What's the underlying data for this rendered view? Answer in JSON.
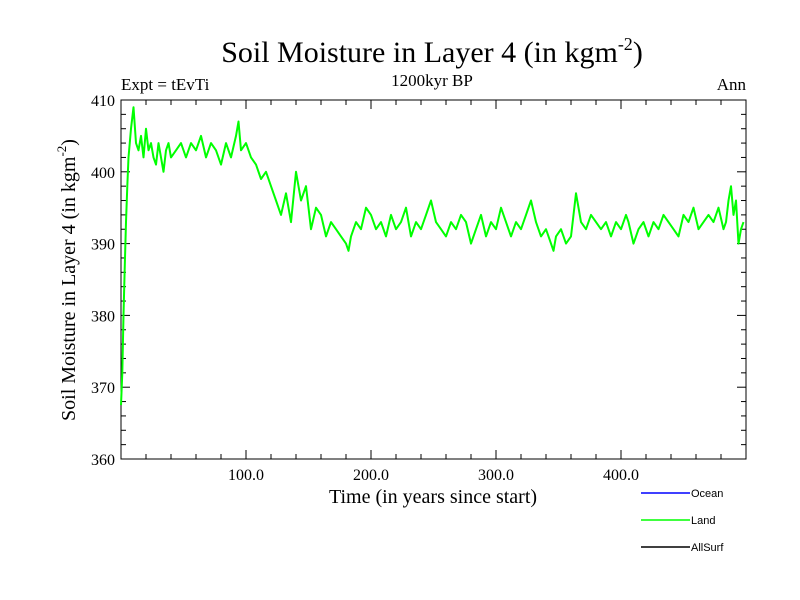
{
  "chart_data": {
    "type": "line",
    "title": "Soil Moisture in Layer 4 (in kgm",
    "title_superscript": "-2",
    "title_close": ")",
    "subtitle_left": "Expt = tEvTi",
    "subtitle_center": "1200kyr BP",
    "subtitle_right": "Ann",
    "xlabel": "Time (in years since start)",
    "ylabel": "Soil Moisture in Layer 4 (in kgm",
    "ylabel_superscript": "-2",
    "ylabel_close": ")",
    "xlim": [
      0,
      500
    ],
    "ylim": [
      360,
      410
    ],
    "x_major_ticks": [
      100,
      200,
      300,
      400
    ],
    "x_tick_labels": [
      "100.0",
      "200.0",
      "300.0",
      "400.0"
    ],
    "y_major_ticks": [
      360,
      370,
      380,
      390,
      400,
      410
    ],
    "y_tick_labels": [
      "360",
      "370",
      "380",
      "390",
      "400",
      "410"
    ],
    "legend": [
      {
        "name": "Ocean",
        "color": "#0000ff"
      },
      {
        "name": "Land",
        "color": "#00ff00"
      },
      {
        "name": "AllSurf",
        "color": "#000000"
      }
    ],
    "series": [
      {
        "name": "Land",
        "color": "#00ff00",
        "x": [
          0,
          1,
          2,
          3,
          4,
          5,
          6,
          8,
          10,
          12,
          14,
          16,
          18,
          20,
          22,
          24,
          26,
          28,
          30,
          32,
          34,
          36,
          38,
          40,
          44,
          48,
          52,
          56,
          60,
          64,
          68,
          72,
          76,
          80,
          84,
          88,
          92,
          94,
          96,
          100,
          104,
          108,
          112,
          116,
          120,
          124,
          128,
          132,
          136,
          140,
          144,
          148,
          152,
          156,
          160,
          164,
          168,
          172,
          176,
          180,
          182,
          184,
          188,
          192,
          196,
          200,
          204,
          208,
          212,
          216,
          220,
          224,
          228,
          232,
          236,
          240,
          244,
          248,
          252,
          256,
          260,
          264,
          268,
          272,
          276,
          280,
          284,
          288,
          292,
          296,
          300,
          304,
          308,
          312,
          316,
          320,
          324,
          328,
          332,
          336,
          340,
          344,
          346,
          348,
          352,
          356,
          360,
          362,
          364,
          368,
          372,
          376,
          380,
          384,
          388,
          392,
          396,
          400,
          404,
          406,
          410,
          414,
          418,
          422,
          426,
          430,
          434,
          438,
          442,
          446,
          450,
          454,
          458,
          462,
          466,
          470,
          474,
          478,
          482,
          484,
          486,
          488,
          490,
          492,
          494,
          496,
          498
        ],
        "values": [
          367.5,
          372,
          380,
          387,
          393,
          398,
          402,
          406,
          409,
          404,
          403,
          405,
          402,
          406,
          403,
          404,
          402,
          401,
          404,
          402,
          400,
          403,
          404,
          402,
          403,
          404,
          402,
          404,
          403,
          405,
          402,
          404,
          403,
          401,
          404,
          402,
          405,
          407,
          403,
          404,
          402,
          401,
          399,
          400,
          398,
          396,
          394,
          397,
          393,
          400,
          396,
          398,
          392,
          395,
          394,
          391,
          393,
          392,
          391,
          390,
          389,
          391,
          393,
          392,
          395,
          394,
          392,
          393,
          391,
          394,
          392,
          393,
          395,
          391,
          393,
          392,
          394,
          396,
          393,
          392,
          391,
          393,
          392,
          394,
          393,
          390,
          392,
          394,
          391,
          393,
          392,
          395,
          393,
          391,
          393,
          392,
          394,
          396,
          393,
          391,
          392,
          390,
          389,
          391,
          392,
          390,
          391,
          394,
          397,
          393,
          392,
          394,
          393,
          392,
          393,
          391,
          393,
          392,
          394,
          393,
          390,
          392,
          393,
          391,
          393,
          392,
          394,
          393,
          392,
          391,
          394,
          393,
          395,
          392,
          393,
          394,
          393,
          395,
          392,
          393,
          396,
          398,
          394,
          396,
          390,
          392,
          393
        ]
      }
    ]
  }
}
